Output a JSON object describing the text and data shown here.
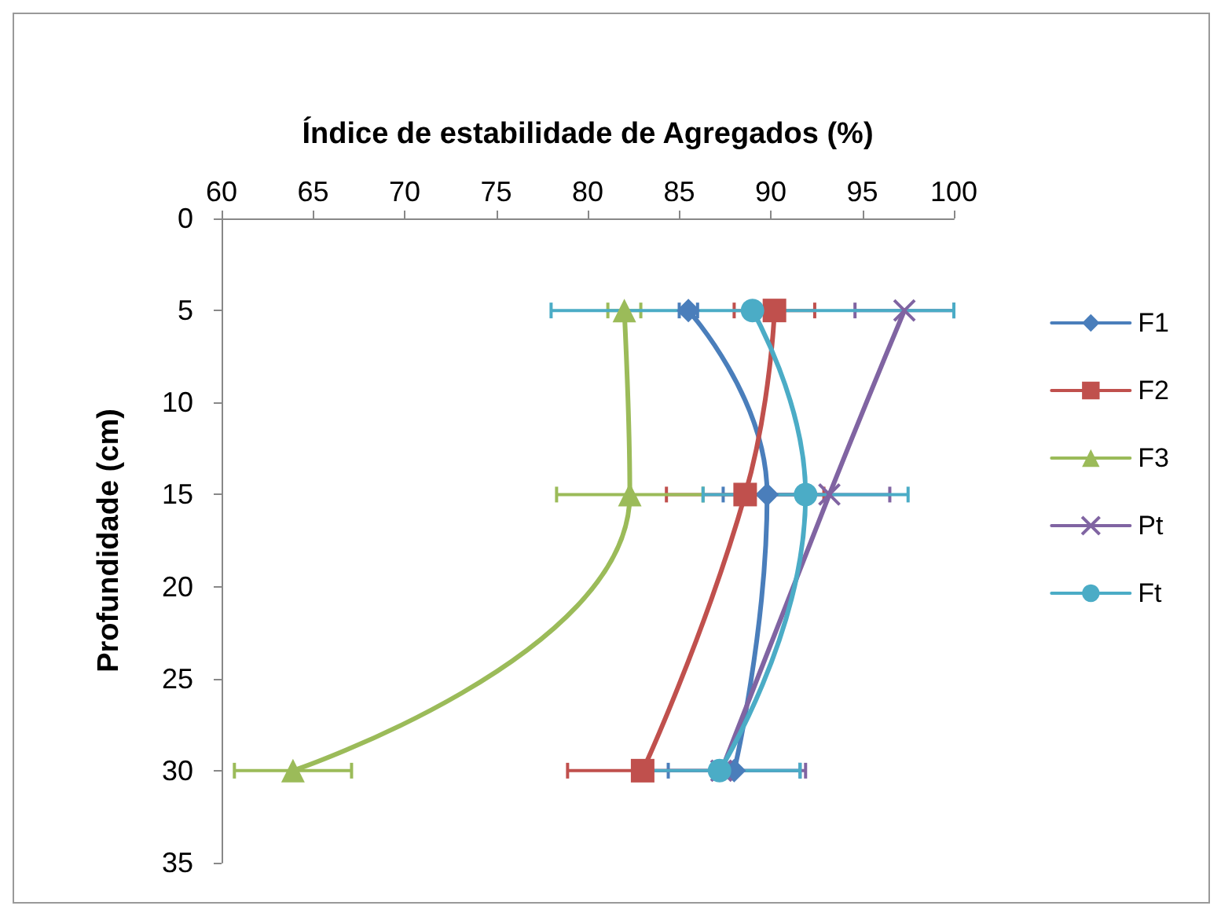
{
  "chart_data": {
    "type": "line",
    "xlabel": "Índice de estabilidade de Agregados (%)",
    "ylabel": "Profundidade (cm)",
    "xlim": [
      60,
      100
    ],
    "xticks": [
      60,
      65,
      70,
      75,
      80,
      85,
      90,
      95,
      100
    ],
    "ylim": [
      35,
      0
    ],
    "yticks": [
      0,
      5,
      10,
      15,
      20,
      25,
      30,
      35
    ],
    "grid": false,
    "legend": "right",
    "line_style": "solid",
    "series": [
      {
        "name": "F1",
        "color": "#4a7ebb",
        "marker": "diamond",
        "x": [
          85.5,
          89.8,
          88.0
        ],
        "values": [
          5,
          15,
          30
        ],
        "xerrors": [
          0.5,
          2.4,
          3.6
        ]
      },
      {
        "name": "F2",
        "color": "#c0504d",
        "marker": "square",
        "x": [
          90.2,
          88.6,
          83.0
        ],
        "values": [
          5,
          15,
          30
        ],
        "xerrors": [
          2.2,
          4.3,
          4.1
        ]
      },
      {
        "name": "F3",
        "color": "#9bbb59",
        "marker": "triangle",
        "x": [
          82.0,
          82.3,
          63.9
        ],
        "values": [
          5,
          15,
          30
        ],
        "xerrors": [
          0.9,
          4,
          3.2
        ]
      },
      {
        "name": "Pt",
        "color": "#8064a2",
        "marker": "cross",
        "x": [
          97.3,
          93.2,
          87.3
        ],
        "values": [
          5,
          15,
          30
        ],
        "xerrors": [
          2.7,
          3.3,
          4.6
        ]
      },
      {
        "name": "Ft",
        "color": "#4bacc6",
        "marker": "circle",
        "x": [
          89,
          91.9,
          87.2
        ],
        "values": [
          5,
          15,
          30
        ],
        "xerrors": [
          11,
          5.6,
          4.4
        ]
      }
    ]
  }
}
